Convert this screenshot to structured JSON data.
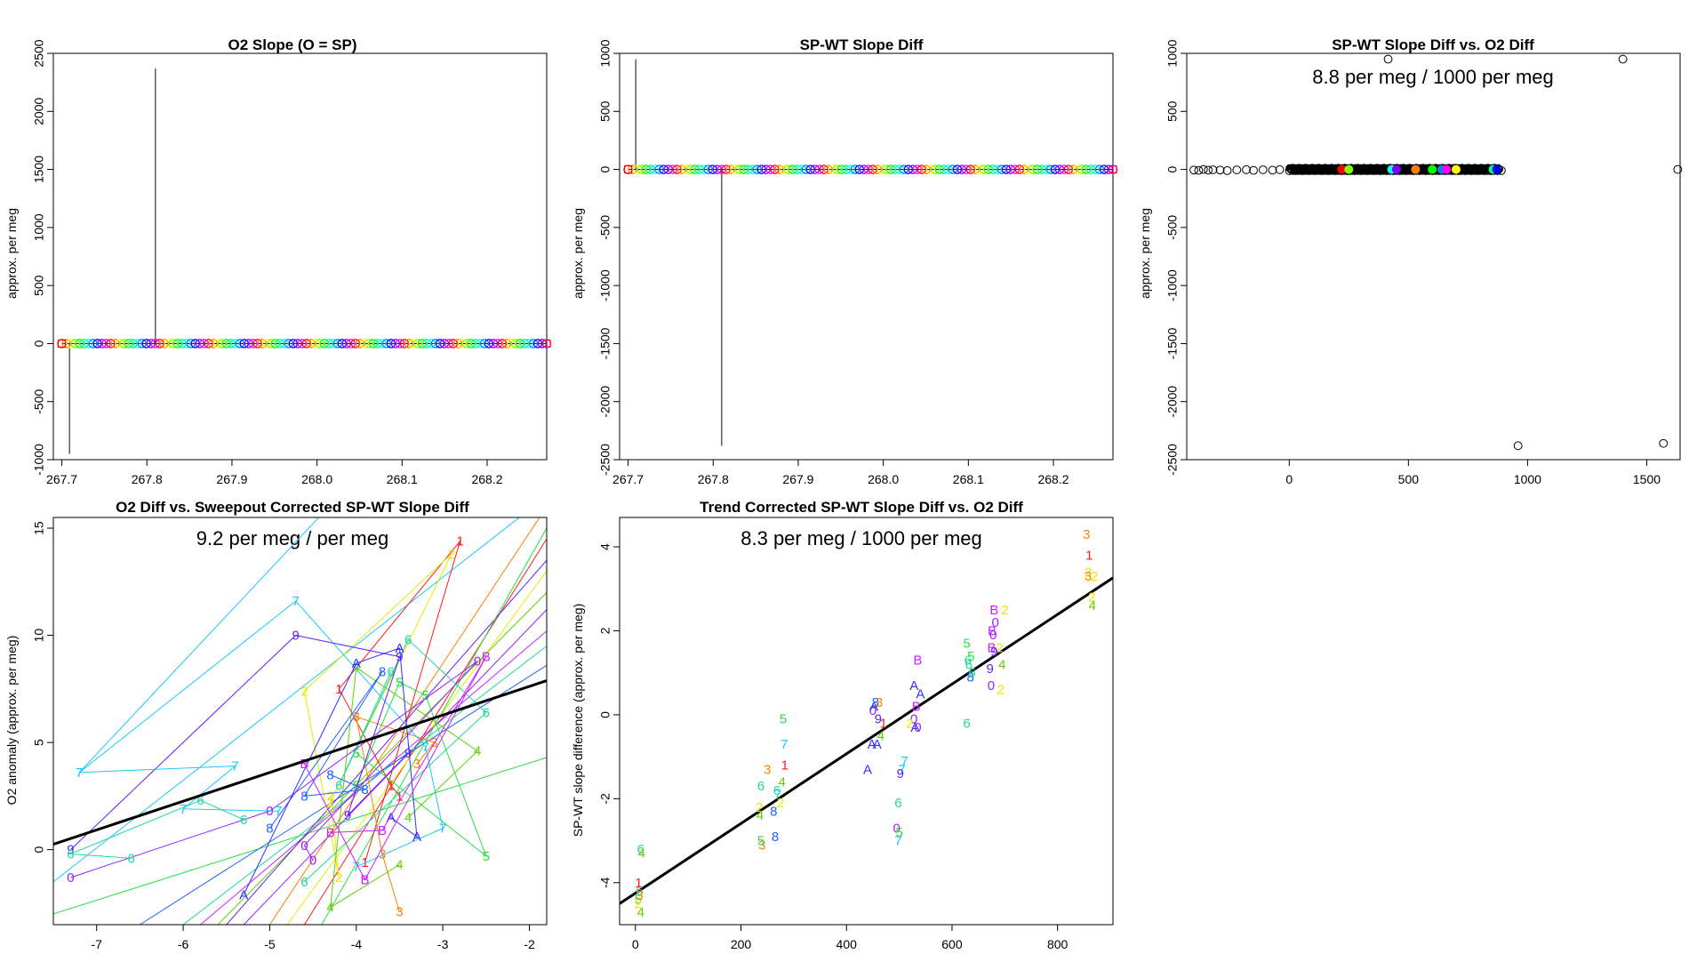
{
  "colors": {
    "frame": "#000000",
    "rainbow": [
      "#ff0000",
      "#ff8000",
      "#ffff00",
      "#80ff00",
      "#00ff00",
      "#00ff80",
      "#00ffff",
      "#0080ff",
      "#0000ff",
      "#8000ff",
      "#ff00ff"
    ],
    "code_colors": {
      "1": "#ff1a1a",
      "2": "#e8e800",
      "3": "#ff7f00",
      "4": "#5fd000",
      "5": "#28e040",
      "6": "#20d8a0",
      "7": "#18c8ff",
      "8": "#1e64ff",
      "9": "#6020ff",
      "0": "#9c20ff",
      "A": "#3030ff",
      "B": "#d020ff"
    }
  },
  "chart_data": [
    {
      "type": "line",
      "title": "O2 Slope (O = SP)",
      "ylabel": "approx. per meg",
      "xlim": [
        267.69,
        268.27
      ],
      "ylim": [
        -1000,
        2500
      ],
      "xticks": [
        267.7,
        267.8,
        267.9,
        268.0,
        268.1,
        268.2
      ],
      "xtick_labels": [
        "267.7",
        "267.8",
        "267.9",
        "268.0",
        "268.1",
        "268.2"
      ],
      "yticks": [
        -1000,
        -500,
        0,
        500,
        1000,
        1500,
        2000,
        2500
      ],
      "ytick_labels": [
        "-1000",
        "-500",
        "0",
        "500",
        "1000",
        "1500",
        "2000",
        "2500"
      ],
      "series_range": [
        267.7,
        268.27
      ],
      "n_points": 110,
      "baseline": 0,
      "spikes": [
        {
          "x": 267.709,
          "y": -950
        },
        {
          "x": 267.81,
          "y": 2370
        }
      ]
    },
    {
      "type": "line",
      "title": "SP-WT Slope Diff",
      "ylabel": "approx. per meg",
      "xlim": [
        267.69,
        268.27
      ],
      "ylim": [
        -2500,
        1000
      ],
      "xticks": [
        267.7,
        267.8,
        267.9,
        268.0,
        268.1,
        268.2
      ],
      "xtick_labels": [
        "267.7",
        "267.8",
        "267.9",
        "268.0",
        "268.1",
        "268.2"
      ],
      "yticks": [
        -2500,
        -2000,
        -1500,
        -1000,
        -500,
        0,
        500,
        1000
      ],
      "ytick_labels": [
        "-2500",
        "-2000",
        "-1500",
        "-1000",
        "-500",
        "0",
        "500",
        "1000"
      ],
      "series_range": [
        267.7,
        268.27
      ],
      "n_points": 110,
      "baseline": 0,
      "spikes": [
        {
          "x": 267.709,
          "y": 950
        },
        {
          "x": 267.81,
          "y": -2380
        }
      ]
    },
    {
      "type": "scatter",
      "title": "SP-WT Slope Diff vs. O2 Diff",
      "ylabel": "approx. per meg",
      "annotation": "8.8 per meg / 1000 per meg",
      "xlim": [
        -430,
        1640
      ],
      "ylim": [
        -2500,
        1000
      ],
      "xticks": [
        0,
        500,
        1000,
        1500
      ],
      "xtick_labels": [
        "0",
        "500",
        "1000",
        "1500"
      ],
      "yticks": [
        -2500,
        -2000,
        -1500,
        -1000,
        -500,
        0,
        500,
        1000
      ],
      "ytick_labels": [
        "-2500",
        "-2000",
        "-1500",
        "-1000",
        "-500",
        "0",
        "500",
        "1000"
      ],
      "outliers": [
        [
          -400,
          -5
        ],
        [
          -380,
          -8
        ],
        [
          -360,
          0
        ],
        [
          -340,
          -6
        ],
        [
          -320,
          -3
        ],
        [
          -290,
          -5
        ],
        [
          -260,
          -10
        ],
        [
          -220,
          -4
        ],
        [
          -180,
          -2
        ],
        [
          -150,
          -8
        ],
        [
          -110,
          -3
        ],
        [
          -70,
          -6
        ],
        [
          -40,
          -2
        ],
        [
          415,
          950
        ],
        [
          1400,
          950
        ],
        [
          1630,
          0
        ],
        [
          960,
          -2380
        ],
        [
          1570,
          -2360
        ],
        [
          890,
          -10
        ]
      ],
      "dense_band": {
        "x": [
          0,
          880
        ],
        "y": 0,
        "n": 420
      },
      "highlight_points": [
        [
          220,
          0
        ],
        [
          250,
          0
        ],
        [
          430,
          0
        ],
        [
          450,
          0
        ],
        [
          530,
          0
        ],
        [
          600,
          0
        ],
        [
          640,
          0
        ],
        [
          660,
          0
        ],
        [
          700,
          0
        ],
        [
          855,
          0
        ],
        [
          870,
          0
        ]
      ]
    },
    {
      "type": "line",
      "title": "O2 Diff vs. Sweepout Corrected SP-WT Slope Diff",
      "ylabel": "O2 anomaly (approx. per meg)",
      "annotation": "9.2 per meg / per meg",
      "xlim": [
        -7.5,
        -1.8
      ],
      "ylim": [
        -3.5,
        15.5
      ],
      "xticks": [
        -7,
        -6,
        -5,
        -4,
        -3,
        -2
      ],
      "xtick_labels": [
        "-7",
        "-6",
        "-5",
        "-4",
        "-3",
        "-2"
      ],
      "yticks": [
        0,
        5,
        10,
        15
      ],
      "ytick_labels": [
        "0",
        "5",
        "10",
        "15"
      ],
      "fit_line": {
        "slope": 1.34,
        "intercept": 10.3
      },
      "series": [
        {
          "code": "1",
          "points": [
            [
              -3.9,
              -0.6
            ],
            [
              -2.8,
              14.4
            ],
            [
              -4.2,
              7.5
            ],
            [
              -3.6,
              3.0
            ],
            [
              -3.5,
              2.5
            ]
          ]
        },
        {
          "code": "2",
          "points": [
            [
              -4.3,
              2.2
            ],
            [
              -2.9,
              13.8
            ],
            [
              -4.6,
              7.4
            ],
            [
              -4.2,
              -1.3
            ],
            [
              -4.3,
              2.5
            ]
          ]
        },
        {
          "code": "3",
          "points": [
            [
              -3.3,
              4.0
            ],
            [
              -3.1,
              5.0
            ],
            [
              -4.0,
              6.2
            ],
            [
              -3.7,
              -0.2
            ],
            [
              -3.5,
              -2.9
            ]
          ]
        },
        {
          "code": "4",
          "points": [
            [
              -3.4,
              1.5
            ],
            [
              -2.6,
              4.6
            ],
            [
              -4.0,
              8.5
            ],
            [
              -4.3,
              -2.7
            ],
            [
              -3.5,
              -0.7
            ]
          ]
        },
        {
          "code": "5",
          "points": [
            [
              -4.0,
              3.0
            ],
            [
              -3.5,
              7.8
            ],
            [
              -3.2,
              7.2
            ],
            [
              -2.5,
              -0.3
            ],
            [
              -4.0,
              4.5
            ]
          ]
        },
        {
          "code": "6",
          "points": [
            [
              -3.6,
              8.3
            ],
            [
              -4.2,
              3.0
            ],
            [
              -3.4,
              9.8
            ],
            [
              -2.5,
              6.4
            ],
            [
              -4.6,
              -1.5
            ]
          ]
        },
        {
          "code": "7",
          "points": [
            [
              -7.2,
              3.6
            ],
            [
              -4.7,
              11.6
            ],
            [
              -3.2,
              4.8
            ],
            [
              -3.0,
              1.0
            ],
            [
              -4.0,
              -0.8
            ]
          ]
        },
        {
          "code": "8",
          "points": [
            [
              -5.0,
              1.0
            ],
            [
              -3.7,
              8.3
            ],
            [
              -4.6,
              2.5
            ],
            [
              -3.9,
              2.8
            ],
            [
              -4.3,
              3.5
            ]
          ]
        },
        {
          "code": "9",
          "points": [
            [
              -7.3,
              0.0
            ],
            [
              -4.7,
              10.0
            ],
            [
              -3.5,
              9.0
            ],
            [
              -4.1,
              1.6
            ],
            [
              -3.4,
              4.5
            ]
          ]
        },
        {
          "code": "0",
          "points": [
            [
              -7.3,
              -1.3
            ],
            [
              -5.0,
              1.8
            ],
            [
              -2.6,
              8.8
            ],
            [
              -4.6,
              0.2
            ],
            [
              -4.5,
              -0.5
            ]
          ]
        },
        {
          "code": "A",
          "points": [
            [
              -5.3,
              -2.1
            ],
            [
              -4.0,
              8.7
            ],
            [
              -3.5,
              9.4
            ],
            [
              -3.3,
              0.6
            ],
            [
              -3.6,
              1.5
            ]
          ]
        },
        {
          "code": "B",
          "points": [
            [
              -4.6,
              4.0
            ],
            [
              -3.9,
              -1.4
            ],
            [
              -2.5,
              9.0
            ],
            [
              -3.7,
              0.9
            ],
            [
              -4.3,
              0.8
            ]
          ]
        },
        {
          "code": "7",
          "points": [
            [
              -7.2,
              3.6
            ],
            [
              -5.4,
              3.9
            ],
            [
              -6.0,
              1.9
            ],
            [
              -4.9,
              1.8
            ]
          ]
        },
        {
          "code": "6",
          "points": [
            [
              -6.6,
              -0.4
            ],
            [
              -7.3,
              -0.2
            ],
            [
              -5.8,
              2.3
            ],
            [
              -5.3,
              1.4
            ]
          ]
        }
      ],
      "extra_lines": [
        {
          "color": "#18c8ff",
          "points": [
            [
              -7.5,
              -1.5
            ],
            [
              -1.8,
              16.5
            ]
          ]
        },
        {
          "color": "#18c8ff",
          "points": [
            [
              -7.2,
              3.6
            ],
            [
              -4.2,
              16.5
            ]
          ]
        },
        {
          "color": "#28e040",
          "points": [
            [
              -7.5,
              -3.0
            ],
            [
              -1.8,
              4.3
            ]
          ]
        },
        {
          "color": "#ff1a1a",
          "points": [
            [
              -4.6,
              -3.5
            ],
            [
              -1.8,
              14.5
            ]
          ]
        },
        {
          "color": "#ff7f00",
          "points": [
            [
              -5.0,
              -3.5
            ],
            [
              -1.8,
              16.0
            ]
          ]
        },
        {
          "color": "#e8e800",
          "points": [
            [
              -4.8,
              -3.5
            ],
            [
              -1.8,
              13.0
            ]
          ]
        },
        {
          "color": "#5fd000",
          "points": [
            [
              -5.6,
              -3.5
            ],
            [
              -1.8,
              12.0
            ]
          ]
        },
        {
          "color": "#9c20ff",
          "points": [
            [
              -5.3,
              -3.5
            ],
            [
              -1.8,
              11.2
            ]
          ]
        },
        {
          "color": "#d020ff",
          "points": [
            [
              -5.8,
              -3.5
            ],
            [
              -1.8,
              10.2
            ]
          ]
        },
        {
          "color": "#20d8a0",
          "points": [
            [
              -6.0,
              -3.5
            ],
            [
              -1.8,
              9.5
            ]
          ]
        },
        {
          "color": "#1e64ff",
          "points": [
            [
              -6.5,
              -3.5
            ],
            [
              -1.8,
              8.6
            ]
          ]
        },
        {
          "color": "#6020ff",
          "points": [
            [
              -5.5,
              -3.5
            ],
            [
              -1.8,
              13.5
            ]
          ]
        },
        {
          "color": "#28e040",
          "points": [
            [
              -4.4,
              -3.5
            ],
            [
              -1.8,
              15.0
            ]
          ]
        }
      ]
    },
    {
      "type": "scatter",
      "title": "Trend Corrected SP-WT Slope Diff vs. O2 Diff",
      "ylabel": "SP-WT slope difference (approx. per meg)",
      "annotation": "8.3 per meg / 1000 per meg",
      "xlim": [
        -30,
        905
      ],
      "ylim": [
        -5.0,
        4.7
      ],
      "xticks": [
        0,
        200,
        400,
        600,
        800
      ],
      "xtick_labels": [
        "0",
        "200",
        "400",
        "600",
        "800"
      ],
      "yticks": [
        -4,
        -2,
        0,
        2,
        4
      ],
      "ytick_labels": [
        "-4",
        "-2",
        "0",
        "2",
        "4"
      ],
      "fit_line": {
        "slope": 0.0083,
        "intercept": -4.25
      },
      "points": [
        [
          "4",
          10,
          -4.7
        ],
        [
          "5",
          5,
          -4.4
        ],
        [
          "6",
          8,
          -4.2
        ],
        [
          "1",
          6,
          -4.0
        ],
        [
          "6",
          10,
          -3.2
        ],
        [
          "4",
          12,
          -3.3
        ],
        [
          "2",
          5,
          -4.5
        ],
        [
          "3",
          8,
          -4.3
        ],
        [
          "3",
          240,
          -3.1
        ],
        [
          "5",
          238,
          -3.0
        ],
        [
          "2",
          235,
          -2.2
        ],
        [
          "6",
          238,
          -1.7
        ],
        [
          "3",
          250,
          -1.3
        ],
        [
          "4",
          236,
          -2.4
        ],
        [
          "8",
          265,
          -2.9
        ],
        [
          "8",
          262,
          -2.3
        ],
        [
          "7",
          270,
          -1.9
        ],
        [
          "2",
          275,
          -2.1
        ],
        [
          "4",
          278,
          -1.6
        ],
        [
          "5",
          280,
          -0.1
        ],
        [
          "7",
          282,
          -0.7
        ],
        [
          "1",
          283,
          -1.2
        ],
        [
          "6",
          268,
          -1.8
        ],
        [
          "A",
          440,
          -1.3
        ],
        [
          "A",
          448,
          -0.7
        ],
        [
          "0",
          450,
          0.1
        ],
        [
          "A",
          452,
          0.2
        ],
        [
          "8",
          455,
          0.3
        ],
        [
          "9",
          460,
          -0.1
        ],
        [
          "3",
          462,
          0.3
        ],
        [
          "1",
          470,
          -0.2
        ],
        [
          "4",
          465,
          -0.5
        ],
        [
          "A",
          458,
          -0.7
        ],
        [
          "7",
          505,
          -1.3
        ],
        [
          "9",
          502,
          -1.4
        ],
        [
          "6",
          498,
          -2.1
        ],
        [
          "0",
          495,
          -2.7
        ],
        [
          "7",
          498,
          -3.0
        ],
        [
          "5",
          500,
          -2.8
        ],
        [
          "7",
          510,
          -1.1
        ],
        [
          "B",
          535,
          1.3
        ],
        [
          "A",
          528,
          0.7
        ],
        [
          "B",
          532,
          0.2
        ],
        [
          "0",
          528,
          -0.1
        ],
        [
          "A",
          530,
          -0.3
        ],
        [
          "0",
          535,
          -0.3
        ],
        [
          "A",
          540,
          0.5
        ],
        [
          "2",
          520,
          -0.2
        ],
        [
          "5",
          628,
          1.7
        ],
        [
          "6",
          630,
          1.3
        ],
        [
          "6",
          632,
          1.2
        ],
        [
          "8",
          635,
          0.9
        ],
        [
          "6",
          638,
          1.0
        ],
        [
          "6",
          628,
          -0.2
        ],
        [
          "5",
          636,
          1.4
        ],
        [
          "B",
          680,
          2.5
        ],
        [
          "0",
          682,
          2.2
        ],
        [
          "B",
          676,
          2.0
        ],
        [
          "0",
          678,
          1.9
        ],
        [
          "B",
          675,
          1.6
        ],
        [
          "9",
          672,
          1.1
        ],
        [
          "0",
          674,
          0.7
        ],
        [
          "2",
          700,
          2.5
        ],
        [
          "2",
          690,
          1.6
        ],
        [
          "4",
          695,
          1.2
        ],
        [
          "2",
          692,
          0.6
        ],
        [
          "9",
          680,
          1.5
        ],
        [
          "3",
          855,
          4.3
        ],
        [
          "1",
          860,
          3.8
        ],
        [
          "2",
          858,
          3.4
        ],
        [
          "2",
          870,
          3.3
        ],
        [
          "2",
          865,
          2.8
        ],
        [
          "4",
          866,
          2.6
        ],
        [
          "3",
          858,
          3.3
        ]
      ]
    }
  ]
}
